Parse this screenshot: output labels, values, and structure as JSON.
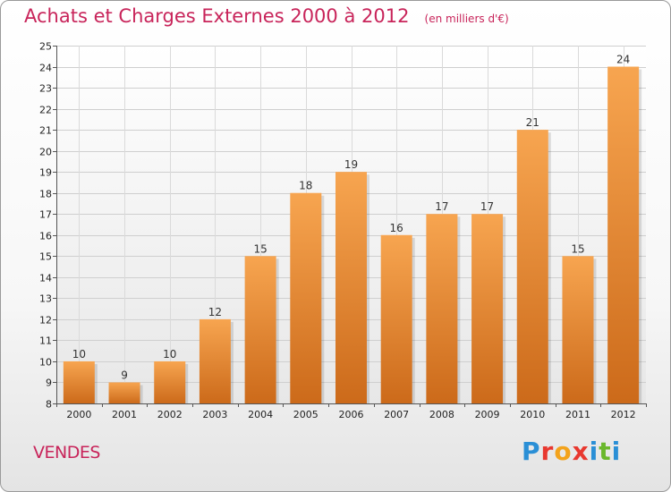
{
  "title": "Achats et Charges Externes 2000 à 2012",
  "unit_note": "(en milliers d'€)",
  "commune": "VENDES",
  "logo": {
    "letters": [
      "P",
      "r",
      "o",
      "x",
      "i",
      "t",
      "i"
    ],
    "colors": [
      "#2a8fd6",
      "#e8382f",
      "#f3a31c",
      "#e8382f",
      "#2a8fd6",
      "#6bb82d",
      "#2a8fd6"
    ]
  },
  "chart_data": {
    "type": "bar",
    "categories": [
      "2000",
      "2001",
      "2002",
      "2003",
      "2004",
      "2005",
      "2006",
      "2007",
      "2008",
      "2009",
      "2010",
      "2011",
      "2012"
    ],
    "values": [
      10,
      9,
      10,
      12,
      15,
      18,
      19,
      16,
      17,
      17,
      21,
      15,
      24
    ],
    "ylim": [
      8,
      25
    ],
    "yticks": [
      8,
      9,
      10,
      11,
      12,
      13,
      14,
      15,
      16,
      17,
      18,
      19,
      20,
      21,
      22,
      23,
      24,
      25
    ],
    "bar_color_light": "#f7a550",
    "bar_color_dark": "#cc6a1a",
    "grid": true,
    "data_labels": true
  }
}
